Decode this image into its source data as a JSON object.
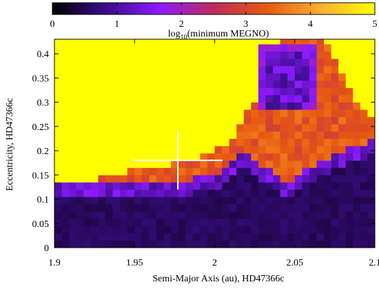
{
  "chart_data": {
    "type": "heatmap",
    "title": "",
    "xlabel": "Semi-Major Axis (au), HD47366c",
    "ylabel": "Eccentricity, HD47366c",
    "xlim": [
      1.9,
      2.1
    ],
    "ylim": [
      0,
      0.43
    ],
    "x_ticks": [
      1.9,
      1.95,
      2.0,
      2.05,
      2.1
    ],
    "x_tick_labels": [
      "1.9",
      "1.95",
      "2",
      "2.05",
      "2.1"
    ],
    "y_ticks": [
      0,
      0.05,
      0.1,
      0.15,
      0.2,
      0.25,
      0.3,
      0.35,
      0.4
    ],
    "y_tick_labels": [
      "0",
      "0.05",
      "0.1",
      "0.15",
      "0.2",
      "0.25",
      "0.3",
      "0.35",
      "0.4"
    ],
    "colorbar": {
      "label_prefix": "log",
      "label_sub": "10",
      "label_suffix": "(minimum MEGNO)",
      "range": [
        0,
        5
      ],
      "ticks": [
        0,
        1,
        2,
        3,
        4,
        5
      ],
      "tick_labels": [
        "0",
        "1",
        "2",
        "3",
        "4",
        "5"
      ],
      "stops": [
        "#000000",
        "#3d0d8a",
        "#8c1aff",
        "#c02a5a",
        "#e85a10",
        "#f8b030",
        "#ffff00"
      ]
    },
    "nominal_point": {
      "a": 1.977,
      "e": 0.18,
      "a_err": 0.028,
      "e_err": 0.06
    },
    "grid": {
      "nx": 44,
      "ny": 29,
      "da": 0.004545,
      "de": 0.015
    },
    "stability_boundary": {
      "a": [
        1.9,
        1.92,
        1.93,
        1.94,
        1.95,
        1.96,
        1.97,
        1.98,
        1.99,
        2.0,
        2.01,
        2.02,
        2.03,
        2.04,
        2.05,
        2.06,
        2.07,
        2.08,
        2.09,
        2.1
      ],
      "e": [
        0.135,
        0.14,
        0.145,
        0.15,
        0.16,
        0.165,
        0.17,
        0.178,
        0.185,
        0.2,
        0.22,
        0.28,
        0.33,
        0.43,
        0.43,
        0.43,
        0.43,
        0.35,
        0.3,
        0.26
      ]
    },
    "chaotic_floor": {
      "a": [
        1.9,
        1.94,
        1.98,
        2.0,
        2.01,
        2.02,
        2.03,
        2.04,
        2.05,
        2.06,
        2.08,
        2.1
      ],
      "e": [
        0.12,
        0.12,
        0.12,
        0.13,
        0.16,
        0.18,
        0.15,
        0.12,
        0.12,
        0.15,
        0.18,
        0.2
      ]
    }
  }
}
